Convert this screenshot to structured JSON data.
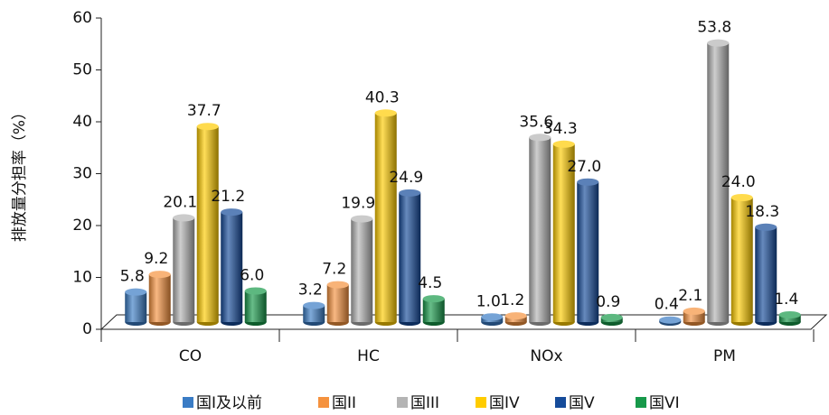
{
  "chart_data": {
    "type": "bar3d",
    "y_label": "排放量分担率（%）",
    "categories": [
      "CO",
      "HC",
      "NOx",
      "PM"
    ],
    "series": [
      {
        "name": "国I及以前",
        "color": "#3a7cc5",
        "values": [
          5.8,
          3.2,
          1.0,
          0.4
        ]
      },
      {
        "name": "国II",
        "color": "#f5923e",
        "values": [
          9.2,
          7.2,
          1.2,
          2.1
        ]
      },
      {
        "name": "国III",
        "color": "#b4b4b4",
        "values": [
          20.1,
          19.9,
          35.6,
          53.8
        ]
      },
      {
        "name": "国IV",
        "color": "#ffcc00",
        "values": [
          37.7,
          40.3,
          34.3,
          24.0
        ]
      },
      {
        "name": "国V",
        "color": "#154b9a",
        "values": [
          21.2,
          24.9,
          27.0,
          18.3
        ]
      },
      {
        "name": "国VI",
        "color": "#17994a",
        "values": [
          6.0,
          4.5,
          0.9,
          1.4
        ]
      }
    ],
    "value_labels": [
      [
        "5.8",
        "3.2",
        "1.0",
        "0.4"
      ],
      [
        "9.2",
        "7.2",
        "1.2",
        "2.1"
      ],
      [
        "20.1",
        "19.9",
        "35.6",
        "53.8"
      ],
      [
        "37.7",
        "40.3",
        "34.3",
        "24.0"
      ],
      [
        "21.2",
        "24.9",
        "27.0",
        "18.3"
      ],
      [
        "6.0",
        "4.5",
        "0.9",
        "1.4"
      ]
    ],
    "ylim": [
      0,
      60
    ],
    "yticks": [
      0,
      10,
      20,
      30,
      40,
      50,
      60
    ],
    "legend": "bottom"
  }
}
